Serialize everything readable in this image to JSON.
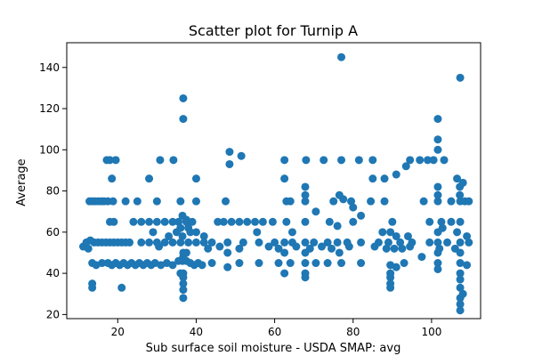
{
  "chart_data": {
    "type": "scatter",
    "title": "Scatter plot for Turnip A",
    "xlabel": "Sub surface soil moisture - USDA SMAP: avg",
    "ylabel": "Average",
    "xlim": [
      7,
      112.5
    ],
    "ylim": [
      18,
      152
    ],
    "xticks": [
      20,
      40,
      60,
      80,
      100
    ],
    "yticks": [
      20,
      40,
      60,
      80,
      100,
      120,
      140
    ],
    "grid": false,
    "color": "#1f77b4",
    "points": [
      [
        77.0,
        145
      ],
      [
        36.7,
        125
      ],
      [
        36.7,
        115
      ],
      [
        107.3,
        135
      ],
      [
        101.6,
        115
      ],
      [
        101.6,
        105
      ],
      [
        101.6,
        100
      ],
      [
        48.5,
        99
      ],
      [
        48.5,
        93
      ],
      [
        51.5,
        97
      ],
      [
        30.8,
        95
      ],
      [
        34.2,
        95
      ],
      [
        99.0,
        95
      ],
      [
        100.5,
        95
      ],
      [
        103.2,
        95
      ],
      [
        17.2,
        95
      ],
      [
        18.0,
        95
      ],
      [
        19.5,
        95
      ],
      [
        62.5,
        95
      ],
      [
        68.0,
        95
      ],
      [
        72.5,
        95
      ],
      [
        77.0,
        95
      ],
      [
        81.5,
        95
      ],
      [
        85.0,
        95
      ],
      [
        94.5,
        95
      ],
      [
        97.0,
        95
      ],
      [
        18.5,
        86
      ],
      [
        28.0,
        86
      ],
      [
        40.0,
        86
      ],
      [
        62.5,
        86
      ],
      [
        85.0,
        86
      ],
      [
        88.0,
        86
      ],
      [
        106.5,
        86
      ],
      [
        108.0,
        84
      ],
      [
        91.0,
        88
      ],
      [
        93.5,
        92
      ],
      [
        107.2,
        82
      ],
      [
        107.2,
        78
      ],
      [
        101.6,
        82
      ],
      [
        101.6,
        78
      ],
      [
        12.8,
        75
      ],
      [
        13.5,
        75
      ],
      [
        14.2,
        75
      ],
      [
        15.0,
        75
      ],
      [
        15.8,
        75
      ],
      [
        16.5,
        75
      ],
      [
        17.5,
        75
      ],
      [
        18.8,
        75
      ],
      [
        22.0,
        75
      ],
      [
        25.0,
        75
      ],
      [
        30.0,
        75
      ],
      [
        36.0,
        75
      ],
      [
        40.0,
        75
      ],
      [
        47.5,
        75
      ],
      [
        63.0,
        75
      ],
      [
        64.0,
        75
      ],
      [
        67.8,
        75
      ],
      [
        75.0,
        75
      ],
      [
        79.5,
        75
      ],
      [
        84.5,
        75
      ],
      [
        88.0,
        75
      ],
      [
        98.0,
        75
      ],
      [
        101.6,
        75
      ],
      [
        105.0,
        75
      ],
      [
        107.3,
        75
      ],
      [
        108.5,
        75
      ],
      [
        109.5,
        75
      ],
      [
        67.8,
        82
      ],
      [
        67.8,
        78
      ],
      [
        76.5,
        78
      ],
      [
        77.5,
        76
      ],
      [
        80.0,
        72
      ],
      [
        70.5,
        70
      ],
      [
        82.0,
        68
      ],
      [
        18.0,
        65
      ],
      [
        19.0,
        65
      ],
      [
        24.0,
        65
      ],
      [
        26.0,
        65
      ],
      [
        28.0,
        65
      ],
      [
        30.0,
        65
      ],
      [
        32.0,
        65
      ],
      [
        34.0,
        65
      ],
      [
        35.5,
        65
      ],
      [
        37.5,
        65
      ],
      [
        39.0,
        65
      ],
      [
        45.5,
        65
      ],
      [
        47.0,
        65
      ],
      [
        49.0,
        65
      ],
      [
        51.0,
        65
      ],
      [
        53.0,
        65
      ],
      [
        55.0,
        65
      ],
      [
        57.0,
        65
      ],
      [
        59.5,
        65
      ],
      [
        63.0,
        65
      ],
      [
        67.8,
        65
      ],
      [
        74.0,
        65
      ],
      [
        80.0,
        65
      ],
      [
        90.0,
        65
      ],
      [
        99.5,
        65
      ],
      [
        102.5,
        65
      ],
      [
        105.0,
        65
      ],
      [
        107.3,
        65
      ],
      [
        36.5,
        68
      ],
      [
        37.5,
        66
      ],
      [
        36.0,
        62
      ],
      [
        38.0,
        62
      ],
      [
        35.0,
        60
      ],
      [
        38.5,
        60
      ],
      [
        40.0,
        60
      ],
      [
        29.0,
        60
      ],
      [
        33.0,
        58
      ],
      [
        36.5,
        58
      ],
      [
        42.0,
        58
      ],
      [
        55.5,
        60
      ],
      [
        64.5,
        60
      ],
      [
        76.0,
        63
      ],
      [
        87.5,
        60
      ],
      [
        89.5,
        60
      ],
      [
        91.0,
        58
      ],
      [
        94.0,
        58
      ],
      [
        101.6,
        60
      ],
      [
        102.8,
        62
      ],
      [
        106.5,
        60
      ],
      [
        109.0,
        58
      ],
      [
        12.0,
        55
      ],
      [
        13.0,
        56
      ],
      [
        14.0,
        55
      ],
      [
        15.0,
        55
      ],
      [
        16.0,
        55
      ],
      [
        17.0,
        55
      ],
      [
        18.0,
        55
      ],
      [
        19.0,
        55
      ],
      [
        20.0,
        55
      ],
      [
        21.0,
        55
      ],
      [
        22.0,
        55
      ],
      [
        23.0,
        55
      ],
      [
        26.0,
        55
      ],
      [
        28.0,
        55
      ],
      [
        30.0,
        55
      ],
      [
        32.0,
        55
      ],
      [
        34.0,
        55
      ],
      [
        36.0,
        55
      ],
      [
        38.0,
        55
      ],
      [
        40.0,
        55
      ],
      [
        42.0,
        55
      ],
      [
        44.0,
        55
      ],
      [
        48.0,
        55
      ],
      [
        52.0,
        55
      ],
      [
        56.0,
        55
      ],
      [
        60.0,
        55
      ],
      [
        62.5,
        55
      ],
      [
        64.5,
        55
      ],
      [
        67.8,
        55
      ],
      [
        70.0,
        55
      ],
      [
        73.5,
        55
      ],
      [
        76.0,
        55
      ],
      [
        78.5,
        55
      ],
      [
        82.0,
        55
      ],
      [
        86.5,
        55
      ],
      [
        89.0,
        55
      ],
      [
        92.0,
        55
      ],
      [
        95.0,
        55
      ],
      [
        99.5,
        55
      ],
      [
        101.6,
        55
      ],
      [
        104.0,
        55
      ],
      [
        107.3,
        55
      ],
      [
        109.5,
        55
      ],
      [
        11.2,
        53
      ],
      [
        12.5,
        52
      ],
      [
        30.5,
        53
      ],
      [
        43.0,
        52
      ],
      [
        46.0,
        53
      ],
      [
        51.0,
        52
      ],
      [
        58.5,
        53
      ],
      [
        61.0,
        52
      ],
      [
        65.5,
        53
      ],
      [
        69.0,
        52
      ],
      [
        72.0,
        53
      ],
      [
        74.5,
        52
      ],
      [
        79.0,
        53
      ],
      [
        85.5,
        53
      ],
      [
        88.5,
        52
      ],
      [
        90.5,
        52
      ],
      [
        92.5,
        52
      ],
      [
        94.5,
        53
      ],
      [
        102.0,
        52
      ],
      [
        106.0,
        52
      ],
      [
        36.7,
        50
      ],
      [
        36.7,
        48
      ],
      [
        37.5,
        50
      ],
      [
        48.0,
        50
      ],
      [
        62.5,
        50
      ],
      [
        67.8,
        50
      ],
      [
        76.5,
        50
      ],
      [
        101.6,
        50
      ],
      [
        107.3,
        50
      ],
      [
        97.5,
        48
      ],
      [
        13.5,
        45
      ],
      [
        14.5,
        44
      ],
      [
        16.0,
        45
      ],
      [
        17.5,
        45
      ],
      [
        18.5,
        44
      ],
      [
        19.5,
        45
      ],
      [
        20.5,
        44
      ],
      [
        21.5,
        45
      ],
      [
        22.5,
        44
      ],
      [
        23.5,
        45
      ],
      [
        24.5,
        44
      ],
      [
        25.5,
        45
      ],
      [
        26.5,
        44
      ],
      [
        27.5,
        45
      ],
      [
        28.5,
        44
      ],
      [
        29.5,
        45
      ],
      [
        31.0,
        44
      ],
      [
        32.5,
        45
      ],
      [
        34.0,
        44
      ],
      [
        35.5,
        46
      ],
      [
        36.5,
        46
      ],
      [
        37.5,
        46
      ],
      [
        38.5,
        45
      ],
      [
        39.5,
        44
      ],
      [
        40.5,
        45
      ],
      [
        41.5,
        44
      ],
      [
        44.0,
        45
      ],
      [
        48.0,
        43
      ],
      [
        51.0,
        45
      ],
      [
        56.0,
        45
      ],
      [
        61.0,
        45
      ],
      [
        64.0,
        45
      ],
      [
        67.8,
        45
      ],
      [
        70.5,
        45
      ],
      [
        73.5,
        45
      ],
      [
        77.0,
        45
      ],
      [
        82.0,
        45
      ],
      [
        89.5,
        44
      ],
      [
        91.0,
        43
      ],
      [
        93.0,
        45
      ],
      [
        101.6,
        45
      ],
      [
        101.6,
        42
      ],
      [
        107.3,
        45
      ],
      [
        109.0,
        44
      ],
      [
        36.7,
        40
      ],
      [
        36.7,
        38
      ],
      [
        36.7,
        35
      ],
      [
        36.7,
        32
      ],
      [
        36.7,
        28
      ],
      [
        62.5,
        40
      ],
      [
        67.8,
        40
      ],
      [
        67.8,
        38
      ],
      [
        89.5,
        40
      ],
      [
        89.5,
        38
      ],
      [
        89.5,
        35
      ],
      [
        89.5,
        33
      ],
      [
        107.3,
        40
      ],
      [
        107.3,
        37
      ],
      [
        107.3,
        33
      ],
      [
        107.3,
        28
      ],
      [
        107.3,
        25
      ],
      [
        107.3,
        22
      ],
      [
        108.0,
        30
      ],
      [
        13.5,
        35
      ],
      [
        13.5,
        33
      ],
      [
        21.0,
        33
      ],
      [
        36.0,
        40
      ]
    ]
  }
}
